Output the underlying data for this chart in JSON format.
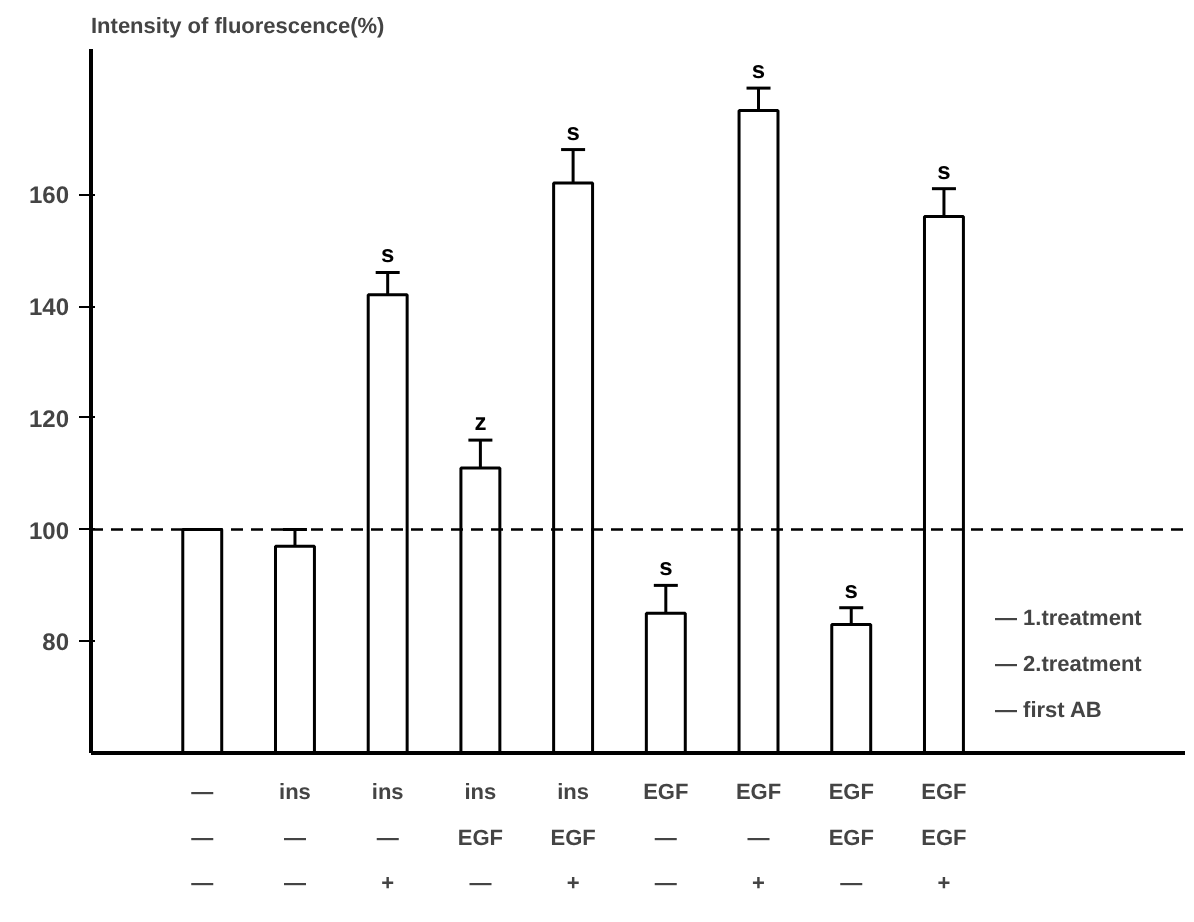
{
  "chart_data": {
    "type": "bar",
    "ylabel": "Intensity of fluorescence(%)",
    "categories": [
      "—\n—\n—",
      "ins\n—\n—",
      "ins\n—\n+",
      "ins\nEGF\n—",
      "ins\nEGF\n+",
      "EGF\n—\n—",
      "EGF\n—\n+",
      "EGF\nEGF\n—",
      "EGF\nEGF\n+"
    ],
    "values": [
      100,
      97,
      142,
      111,
      162,
      85,
      175,
      83,
      156
    ],
    "errors": [
      null,
      3,
      4,
      5,
      6,
      5,
      4,
      3,
      5
    ],
    "color": "#ffffff",
    "ylim": [
      60,
      186
    ],
    "yticks": [
      80,
      100,
      120,
      140,
      160
    ],
    "grid": false,
    "ref_lines": [
      {
        "axis": "y",
        "value": 100,
        "color": "#000000",
        "line_style": "dashed"
      }
    ],
    "annotations": [
      {
        "text": "s",
        "x": "ins\n—\n+",
        "y": 146
      },
      {
        "text": "z",
        "x": "ins\nEGF\n—",
        "y": 116
      },
      {
        "text": "s",
        "x": "ins\nEGF\n+",
        "y": 168
      },
      {
        "text": "s",
        "x": "EGF\n—\n—",
        "y": 90
      },
      {
        "text": "s",
        "x": "EGF\n—\n+",
        "y": 179
      },
      {
        "text": "s",
        "x": "EGF\nEGF\n—",
        "y": 86
      },
      {
        "text": "s",
        "x": "EGF\nEGF\n+",
        "y": 161
      },
      "— 1.treatment",
      "— 2.treatment",
      "— first AB"
    ]
  }
}
